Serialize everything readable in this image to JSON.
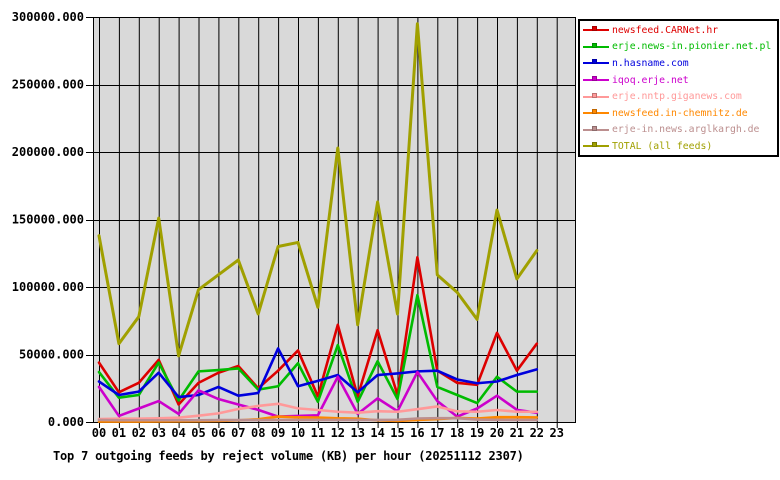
{
  "page": {
    "background": "#ffffff"
  },
  "chart_data": {
    "type": "line",
    "title": "Top 7 outgoing feeds by reject volume (KB) per hour (20251112 2307)",
    "xlabel": "",
    "ylabel": "",
    "x_categories": [
      "00",
      "01",
      "02",
      "03",
      "04",
      "05",
      "06",
      "07",
      "08",
      "09",
      "10",
      "11",
      "12",
      "13",
      "14",
      "15",
      "16",
      "17",
      "18",
      "19",
      "20",
      "21",
      "22",
      "23"
    ],
    "note": "series values cover hours 00 through 22; hour 23 has no data",
    "ylim": [
      0,
      300000
    ],
    "ytick_values": [
      0,
      50000,
      100000,
      150000,
      200000,
      250000,
      300000
    ],
    "ytick_labels": [
      "0.000",
      "50000.000",
      "100000.000",
      "150000.000",
      "200000.000",
      "250000.000",
      "300000.000"
    ],
    "grid": true,
    "plot_bg": "#d9d9d9",
    "grid_color": "#000000",
    "legend_position": "top-right",
    "series": [
      {
        "name": "newsfeed.CARNet.hr",
        "color": "#dd0000",
        "values": [
          44000,
          22000,
          29000,
          46000,
          13000,
          29000,
          36500,
          41500,
          25000,
          38000,
          53000,
          19000,
          72000,
          19000,
          68000,
          20000,
          122000,
          38000,
          29000,
          27500,
          66000,
          38000,
          58000
        ]
      },
      {
        "name": "erje.news-in.pionier.net.pl",
        "color": "#00bb00",
        "values": [
          37000,
          18000,
          20000,
          44000,
          16000,
          37500,
          38500,
          39700,
          24000,
          26500,
          43500,
          15000,
          57000,
          15000,
          45000,
          17000,
          94000,
          26000,
          20000,
          14000,
          33500,
          22500,
          22500
        ]
      },
      {
        "name": "n.hasname.com",
        "color": "#0000dd",
        "values": [
          30000,
          20000,
          22500,
          36500,
          18500,
          20000,
          26000,
          19500,
          21500,
          54500,
          26500,
          30500,
          34800,
          22000,
          34800,
          36000,
          37500,
          38000,
          31500,
          28700,
          30000,
          34800,
          39000
        ]
      },
      {
        "name": "iqoq.erje.net",
        "color": "#cc00cc",
        "values": [
          26000,
          4500,
          10000,
          15500,
          6000,
          23500,
          17000,
          13000,
          9000,
          4000,
          4500,
          5000,
          33500,
          6000,
          17500,
          8000,
          37000,
          15500,
          4000,
          10000,
          19500,
          9000,
          6900
        ]
      },
      {
        "name": "erje.nntp.giganews.com",
        "color": "#ff9999",
        "values": [
          2200,
          2500,
          2500,
          2700,
          3200,
          4700,
          6400,
          9600,
          11900,
          13500,
          10100,
          8900,
          7600,
          6900,
          8000,
          7600,
          9500,
          11500,
          7900,
          7600,
          8900,
          7600,
          7600
        ]
      },
      {
        "name": "newsfeed.in-chemnitz.de",
        "color": "#ff8800",
        "values": [
          300,
          300,
          300,
          400,
          500,
          600,
          800,
          1200,
          2000,
          4000,
          3500,
          3300,
          2700,
          2500,
          1200,
          800,
          1500,
          2200,
          3000,
          2600,
          3600,
          3600,
          3400
        ]
      },
      {
        "name": "erje-in.news.arglkargh.de",
        "color": "#bc8f8f",
        "values": [
          1500,
          1300,
          1300,
          1300,
          1300,
          1300,
          1400,
          1400,
          1400,
          1500,
          1500,
          1500,
          1500,
          1500,
          1500,
          1600,
          2600,
          2800,
          2800,
          1800,
          1600,
          1500,
          1500
        ]
      },
      {
        "name": "TOTAL (all feeds)",
        "color": "#a0a000",
        "values": [
          138000,
          58000,
          78000,
          151000,
          49000,
          98000,
          109000,
          120000,
          80000,
          130000,
          133000,
          85000,
          203000,
          72000,
          163000,
          80000,
          295000,
          109000,
          96000,
          76000,
          157000,
          106000,
          127000
        ]
      }
    ]
  }
}
